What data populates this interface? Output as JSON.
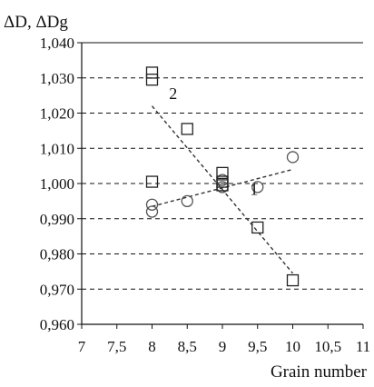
{
  "chart_data": {
    "type": "scatter",
    "ylabel": "ΔD, ΔDg",
    "xlabel": "Grain number",
    "xlim": [
      7,
      11
    ],
    "ylim": [
      0.96,
      1.04
    ],
    "x_ticks": [
      {
        "value": 7,
        "label": "7"
      },
      {
        "value": 7.5,
        "label": "7,5"
      },
      {
        "value": 8,
        "label": "8"
      },
      {
        "value": 8.5,
        "label": "8,5"
      },
      {
        "value": 9,
        "label": "9"
      },
      {
        "value": 9.5,
        "label": "9,5"
      },
      {
        "value": 10,
        "label": "10"
      },
      {
        "value": 10.5,
        "label": "10,5"
      },
      {
        "value": 11,
        "label": "11"
      }
    ],
    "y_ticks": [
      {
        "value": 0.96,
        "label": "0,960"
      },
      {
        "value": 0.97,
        "label": "0,970"
      },
      {
        "value": 0.98,
        "label": "0,980"
      },
      {
        "value": 0.99,
        "label": "0,990"
      },
      {
        "value": 1.0,
        "label": "1,000"
      },
      {
        "value": 1.01,
        "label": "1,010"
      },
      {
        "value": 1.02,
        "label": "1,020"
      },
      {
        "value": 1.03,
        "label": "1,030"
      },
      {
        "value": 1.04,
        "label": "1,040"
      }
    ],
    "grid": {
      "horizontal": "dashed",
      "vertical": false
    },
    "series": [
      {
        "label": "1",
        "marker": "circle",
        "points": [
          {
            "x": 8,
            "y": 0.994
          },
          {
            "x": 8,
            "y": 0.992
          },
          {
            "x": 8.5,
            "y": 0.995
          },
          {
            "x": 9,
            "y": 1.001
          },
          {
            "x": 9,
            "y": 0.999
          },
          {
            "x": 9.5,
            "y": 0.999
          },
          {
            "x": 10,
            "y": 1.0075
          }
        ],
        "trendline": {
          "x": [
            8,
            10
          ],
          "y": [
            0.9935,
            1.004
          ]
        }
      },
      {
        "label": "2",
        "marker": "square",
        "points": [
          {
            "x": 8,
            "y": 1.0315
          },
          {
            "x": 8,
            "y": 1.0295
          },
          {
            "x": 8,
            "y": 1.0005
          },
          {
            "x": 8.5,
            "y": 1.0155
          },
          {
            "x": 9,
            "y": 1.003
          },
          {
            "x": 9,
            "y": 1.0005
          },
          {
            "x": 9,
            "y": 0.9995
          },
          {
            "x": 9.5,
            "y": 0.9875
          },
          {
            "x": 10,
            "y": 0.9725
          }
        ],
        "trendline": {
          "x": [
            8,
            10
          ],
          "y": [
            1.022,
            0.9745
          ]
        }
      }
    ]
  }
}
